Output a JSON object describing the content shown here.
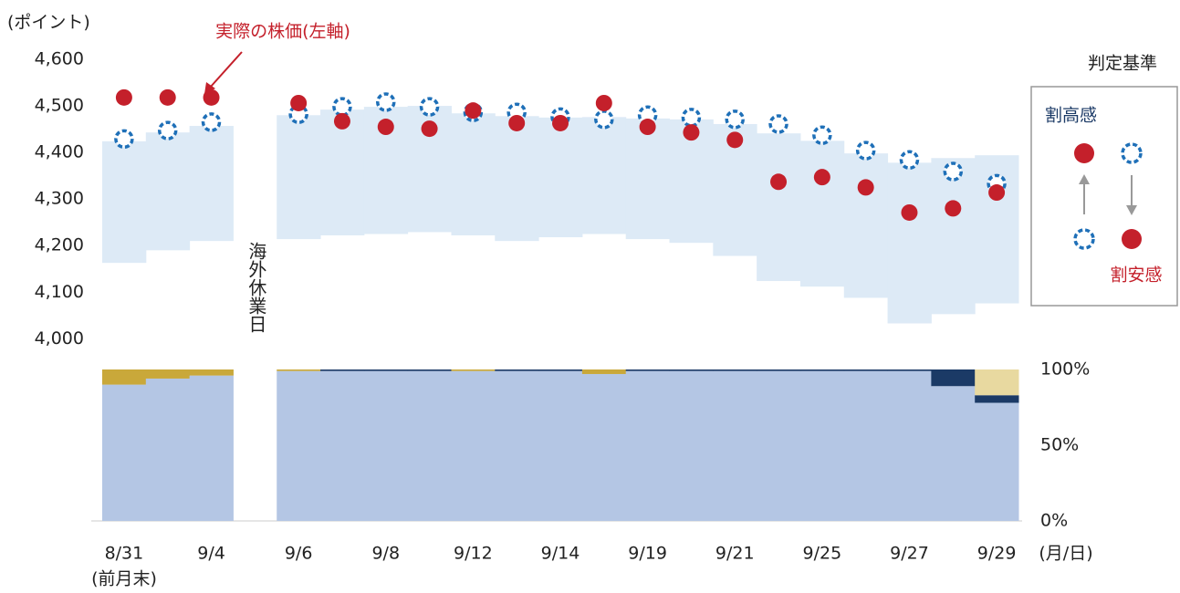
{
  "chart_data": [
    {
      "type": "dotband",
      "y_unit_label": "(ポイント)",
      "annotation": "実際の株価(左軸)",
      "gap_label": "海外休業日",
      "x_unit_label": "(月/日)",
      "x_sublabel": "(前月末)",
      "legend_title": "判定基準",
      "legend_labels": [
        "割高感",
        "割安感"
      ],
      "categories": [
        "8/31",
        null,
        "9/4",
        null,
        "9/6",
        null,
        "9/8",
        null,
        "9/12",
        null,
        "9/14",
        null,
        "9/19",
        null,
        "9/21",
        null,
        "9/25",
        null,
        "9/27",
        null,
        "9/29"
      ],
      "band": {
        "color": "#ddeaf6",
        "low": [
          4163,
          4190,
          4210,
          null,
          4214,
          4222,
          4225,
          4229,
          4222,
          4210,
          4218,
          4225,
          4214,
          4206,
          4178,
          4124,
          4112,
          4088,
          4033,
          4053,
          4076
        ],
        "high": [
          4424,
          4443,
          4457,
          null,
          4480,
          4492,
          4498,
          4500,
          4484,
          4478,
          4475,
          4476,
          4473,
          4471,
          4461,
          4441,
          4425,
          4398,
          4378,
          4388,
          4394
        ]
      },
      "series": [
        {
          "color": "#1f70b8",
          "style": "dotted",
          "values": [
            4429,
            4447,
            4465,
            null,
            4482,
            4498,
            4508,
            4498,
            4486,
            4486,
            4476,
            4471,
            4480,
            4475,
            4471,
            4461,
            4437,
            4404,
            4384,
            4359,
            4333
          ]
        },
        {
          "color": "#c4202b",
          "style": "solid",
          "values": [
            4518,
            4518,
            4518,
            null,
            4506,
            4467,
            4455,
            4451,
            4490,
            4463,
            4463,
            4506,
            4455,
            4443,
            4427,
            4337,
            4347,
            4325,
            4271,
            4280,
            4314
          ]
        }
      ],
      "ylim": [
        3940,
        4600
      ],
      "yticks": [
        {
          "value": 4000,
          "label": "4,000"
        },
        {
          "value": 4100,
          "label": "4,100"
        },
        {
          "value": 4200,
          "label": "4,200"
        },
        {
          "value": 4300,
          "label": "4,300"
        },
        {
          "value": 4400,
          "label": "4,400"
        },
        {
          "value": 4500,
          "label": "4,500"
        },
        {
          "value": 4600,
          "label": "4,600"
        }
      ]
    },
    {
      "type": "stacked_bar",
      "series": [
        {
          "color": "#b4c6e4",
          "values": [
            90,
            94,
            96,
            null,
            99,
            99,
            99,
            99,
            99,
            99,
            99,
            97,
            99,
            99,
            99,
            99,
            99,
            99,
            99,
            89,
            78
          ]
        },
        {
          "color": "#1b3a66",
          "values": [
            0,
            0,
            0,
            null,
            0,
            1,
            1,
            1,
            0,
            1,
            1,
            0,
            1,
            1,
            1,
            1,
            1,
            1,
            1,
            11,
            5
          ]
        },
        {
          "color": "#c9a83a",
          "values": [
            10,
            6,
            4,
            null,
            1,
            0,
            0,
            0,
            1,
            0,
            0,
            3,
            0,
            0,
            0,
            0,
            0,
            0,
            0,
            0,
            0
          ]
        },
        {
          "color": "#e8d9a0",
          "values": [
            0,
            0,
            0,
            null,
            0,
            0,
            0,
            0,
            0,
            0,
            0,
            0,
            0,
            0,
            0,
            0,
            0,
            0,
            0,
            0,
            17
          ]
        }
      ],
      "ylim": [
        0,
        100
      ],
      "yticks": [
        {
          "value": 0,
          "label": "0%"
        },
        {
          "value": 50,
          "label": "50%"
        },
        {
          "value": 100,
          "label": "100%"
        }
      ]
    }
  ]
}
